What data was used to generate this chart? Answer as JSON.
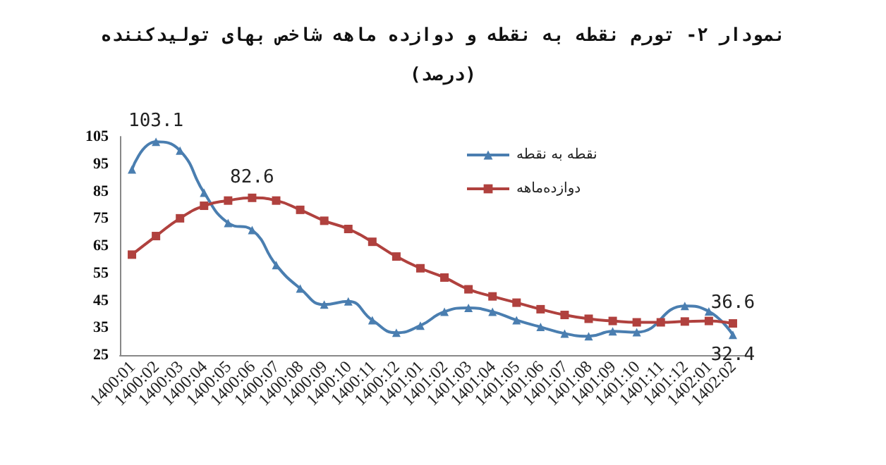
{
  "chart_data": {
    "type": "line",
    "title": "نمودار ۲- تورم نقطه به نقطه و دوازده ماهه شاخص بهای تولیدکننده",
    "subtitle": "(درصد)",
    "categories": [
      "1400:01",
      "1400:02",
      "1400:03",
      "1400:04",
      "1400:05",
      "1400:06",
      "1400:07",
      "1400:08",
      "1400:09",
      "1400:10",
      "1400:11",
      "1400:12",
      "1401:01",
      "1401:02",
      "1401:03",
      "1401:04",
      "1401:05",
      "1401:06",
      "1401:07",
      "1401:08",
      "1401:09",
      "1401:10",
      "1401:11",
      "1401:12",
      "1402:01",
      "1402:02"
    ],
    "series": [
      {
        "name": "نقطه به نقطه",
        "color": "#4a7eb0",
        "marker": "triangle",
        "values": [
          93.0,
          103.1,
          99.9,
          84.5,
          73.4,
          70.8,
          58.0,
          49.4,
          43.5,
          44.7,
          37.8,
          33.2,
          35.8,
          40.9,
          42.3,
          40.9,
          37.8,
          35.3,
          32.9,
          31.9,
          33.7,
          33.4,
          null,
          43.0,
          41.0,
          32.4
        ],
        "value_labels": [
          null,
          "103.1",
          null,
          null,
          null,
          null,
          null,
          null,
          null,
          null,
          null,
          null,
          null,
          null,
          null,
          null,
          null,
          null,
          null,
          null,
          null,
          null,
          null,
          null,
          null,
          "32.4"
        ]
      },
      {
        "name": "دوازده‌ماهه",
        "color": "#b0413e",
        "marker": "square",
        "values": [
          61.8,
          68.6,
          75.1,
          79.7,
          81.6,
          82.6,
          81.6,
          78.2,
          74.2,
          71.2,
          66.5,
          61.1,
          56.8,
          53.4,
          49.1,
          46.5,
          44.2,
          41.8,
          39.7,
          38.3,
          37.5,
          37.0,
          37.0,
          37.3,
          37.5,
          36.6
        ],
        "value_labels": [
          null,
          null,
          null,
          null,
          null,
          "82.6",
          null,
          null,
          null,
          null,
          null,
          null,
          null,
          null,
          null,
          null,
          null,
          null,
          null,
          null,
          null,
          null,
          null,
          null,
          null,
          "36.6"
        ]
      }
    ],
    "ylim": [
      25,
      105
    ],
    "yticks": [
      25,
      35,
      45,
      55,
      65,
      75,
      85,
      95,
      105
    ],
    "grid": false,
    "legend": "top right",
    "line_style": "solid"
  }
}
